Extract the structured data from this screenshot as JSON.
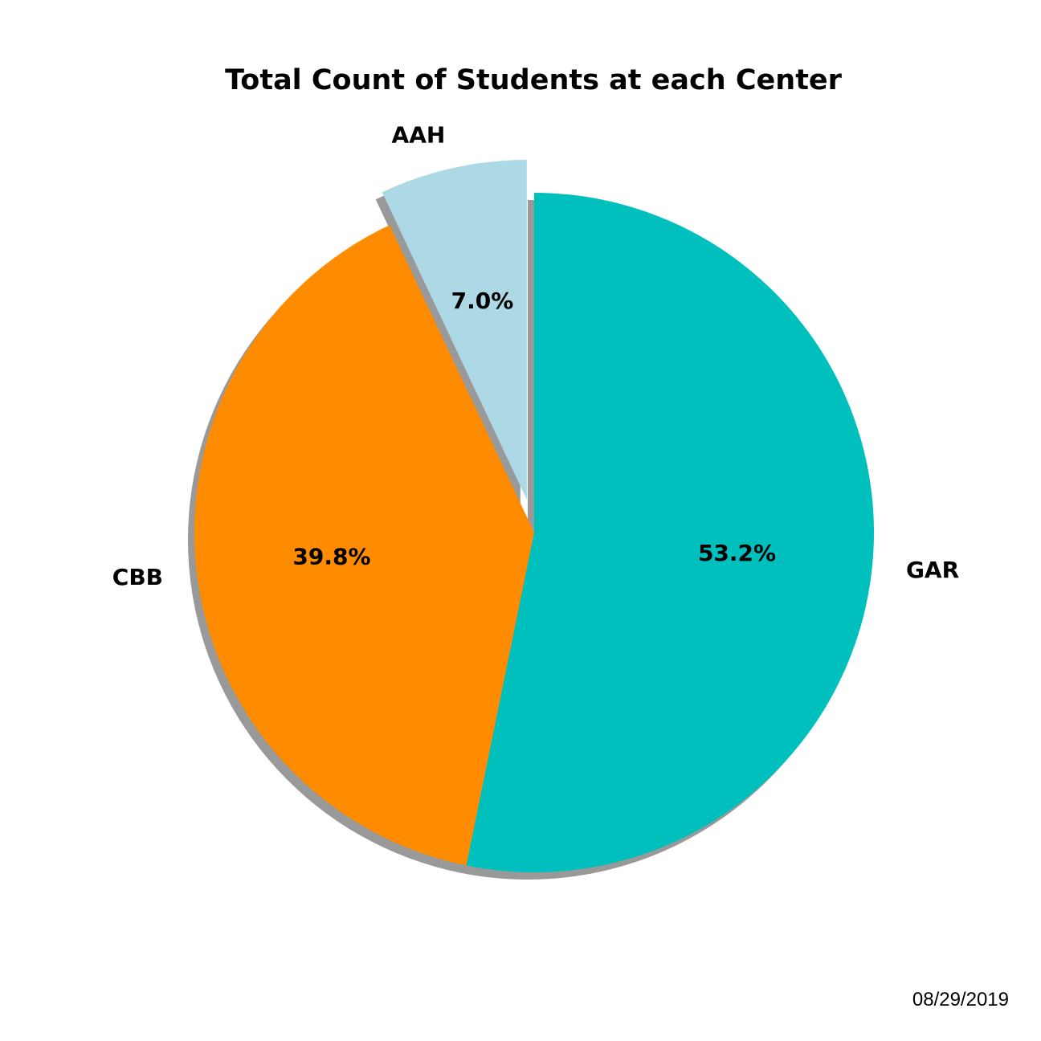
{
  "chart_data": {
    "type": "pie",
    "title": "Total Count of Students at each Center",
    "slices": [
      {
        "label": "AAH",
        "percent": 7.0,
        "percent_label": "7.0%",
        "color": "#add8e6",
        "exploded": true
      },
      {
        "label": "CBB",
        "percent": 39.8,
        "percent_label": "39.8%",
        "color": "#ff8c00",
        "exploded": false
      },
      {
        "label": "GAR",
        "percent": 53.2,
        "percent_label": "53.2%",
        "color": "#00c0be",
        "exploded": false
      }
    ],
    "start_angle_deg": 90,
    "direction": "counterclockwise",
    "shadow": true,
    "legend": "none"
  },
  "footer": {
    "date": "08/29/2019"
  }
}
